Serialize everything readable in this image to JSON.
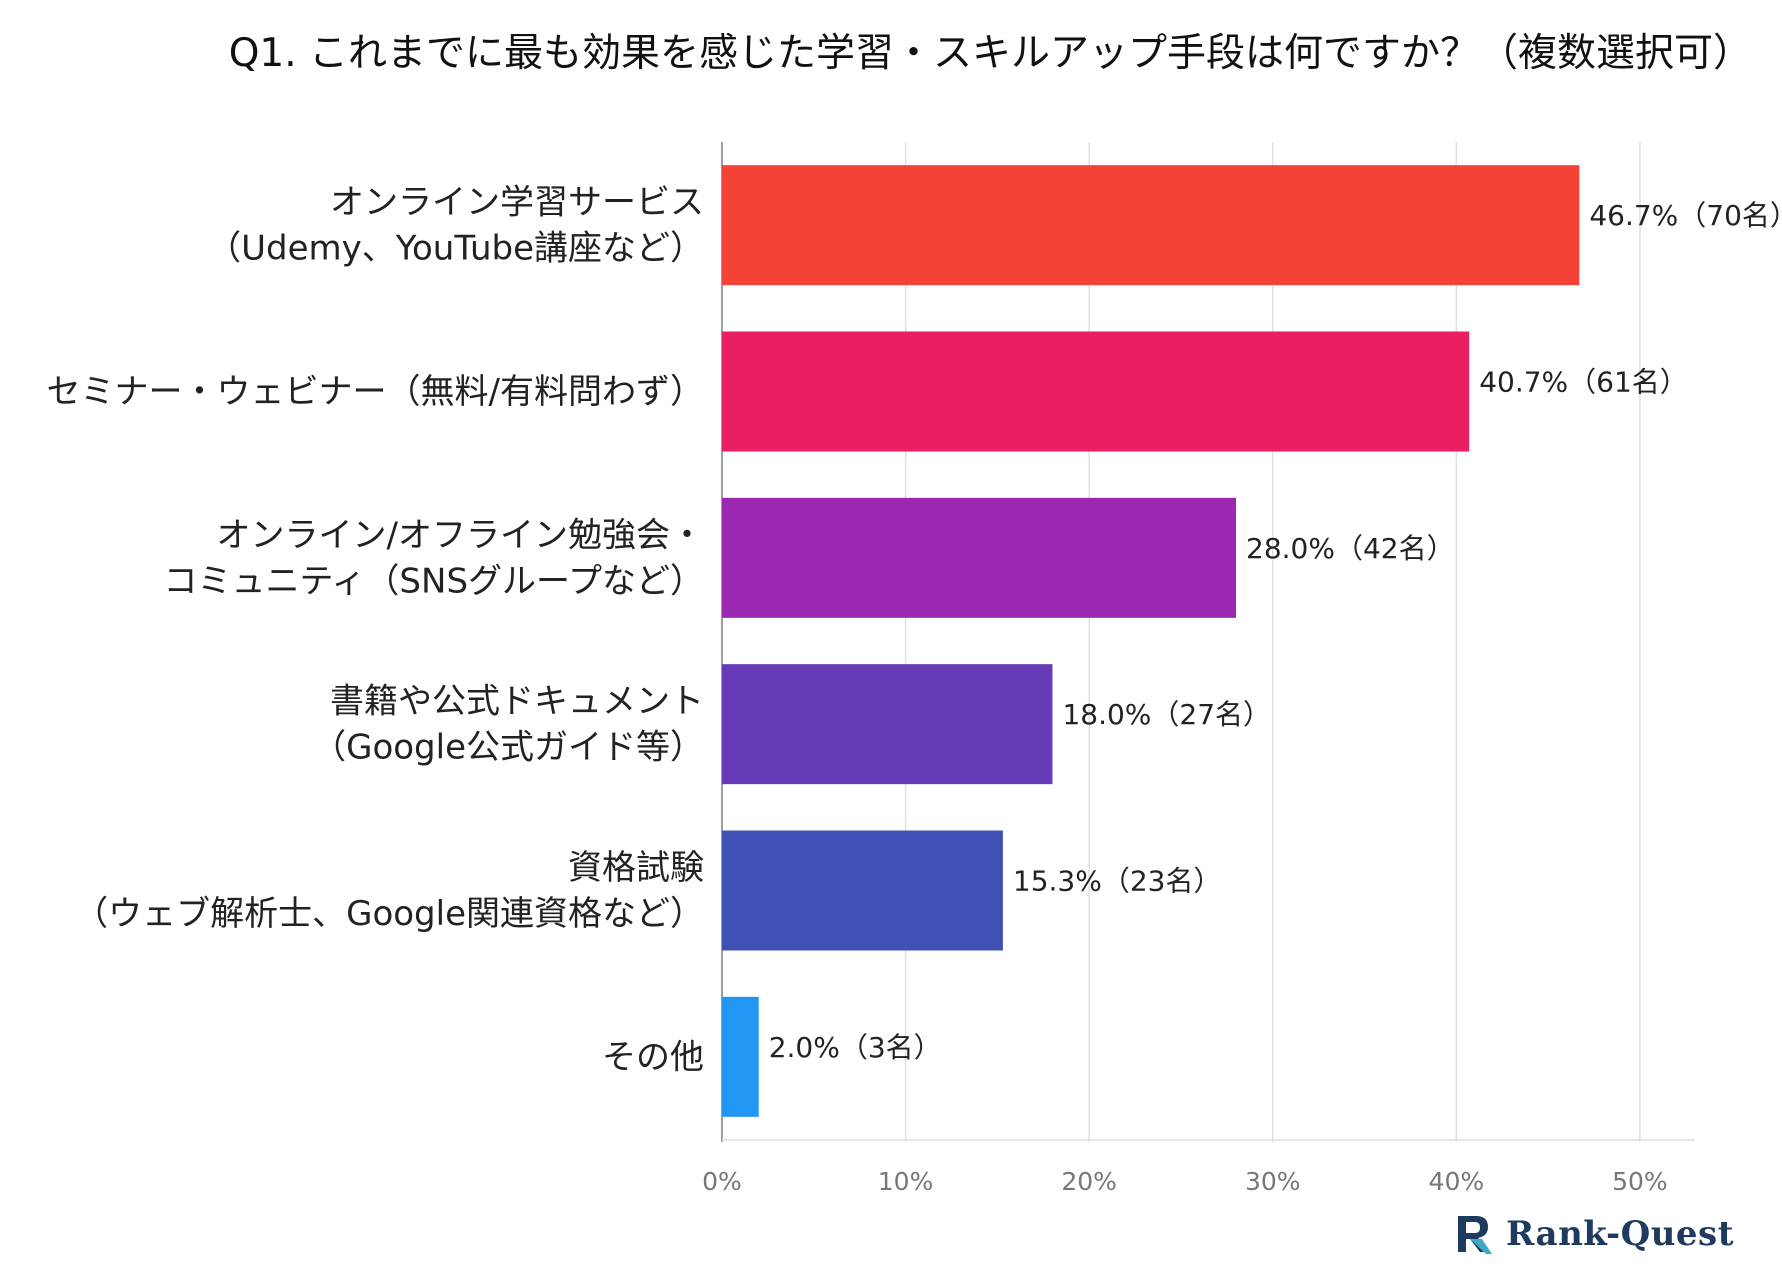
{
  "title": "Q1. これまでに最も効果を感じた学習・スキルアップ手段は何ですか？（複数選択可）",
  "chart_data": {
    "type": "bar",
    "orientation": "horizontal",
    "title": "Q1. これまでに最も効果を感じた学習・スキルアップ手段は何ですか？（複数選択可）",
    "categories": [
      [
        "オンライン学習サービス",
        "（Udemy、YouTube講座など）"
      ],
      [
        "セミナー・ウェビナー（無料/有料問わず）"
      ],
      [
        "オンライン/オフライン勉強会・",
        "コミュニティ（SNSグループなど）"
      ],
      [
        "書籍や公式ドキュメント",
        "（Google公式ガイド等）"
      ],
      [
        "資格試験",
        "（ウェブ解析士、Google関連資格など）"
      ],
      [
        "その他"
      ]
    ],
    "values": [
      46.7,
      40.7,
      28.0,
      18.0,
      15.3,
      2.0
    ],
    "value_labels": [
      "46.7%（70名）",
      "40.7%（61名）",
      "28.0%（42名）",
      "18.0%（27名）",
      "15.3%（23名）",
      "2.0%（3名）"
    ],
    "colors": [
      "#f44336",
      "#e91e63",
      "#9c27b0",
      "#673ab7",
      "#3f51b5",
      "#2196f3"
    ],
    "xlim": [
      0,
      53
    ],
    "xticks": [
      0,
      10,
      20,
      30,
      40,
      50
    ],
    "xtick_labels": [
      "0%",
      "10%",
      "20%",
      "30%",
      "40%",
      "50%"
    ],
    "xlabel": "",
    "ylabel": "",
    "grid": true
  },
  "logo": {
    "text": "Rank-Quest",
    "icon": "rank-quest-logo-icon"
  }
}
